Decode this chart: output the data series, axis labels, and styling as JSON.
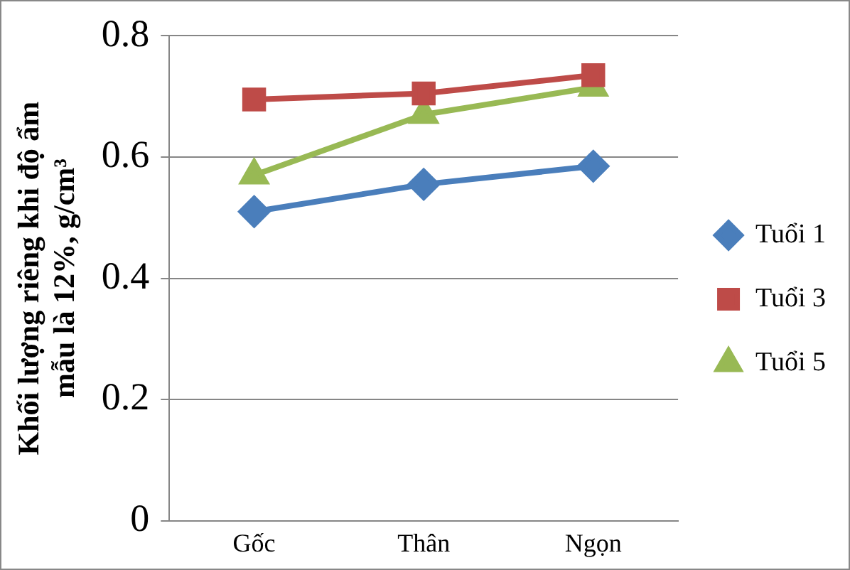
{
  "chart_data": {
    "type": "line",
    "ylabel": "Khối lượng riêng khi độ ẩm mẫu là 12%, g/cm³",
    "categories": [
      "Gốc",
      "Thân",
      "Ngọn"
    ],
    "series": [
      {
        "name": "Tuổi 1",
        "color": "#4a7ebb",
        "marker": "diamond",
        "values": [
          0.51,
          0.555,
          0.585
        ]
      },
      {
        "name": "Tuổi 3",
        "color": "#be4b48",
        "marker": "square",
        "values": [
          0.695,
          0.705,
          0.735
        ]
      },
      {
        "name": "Tuổi 5",
        "color": "#98b954",
        "marker": "triangle",
        "values": [
          0.57,
          0.67,
          0.715
        ]
      }
    ],
    "ylim": [
      0,
      0.8
    ],
    "yticks": [
      0,
      0.2,
      0.4,
      0.6,
      0.8
    ],
    "grid": "y",
    "legend": "right",
    "line_style": "solid"
  }
}
